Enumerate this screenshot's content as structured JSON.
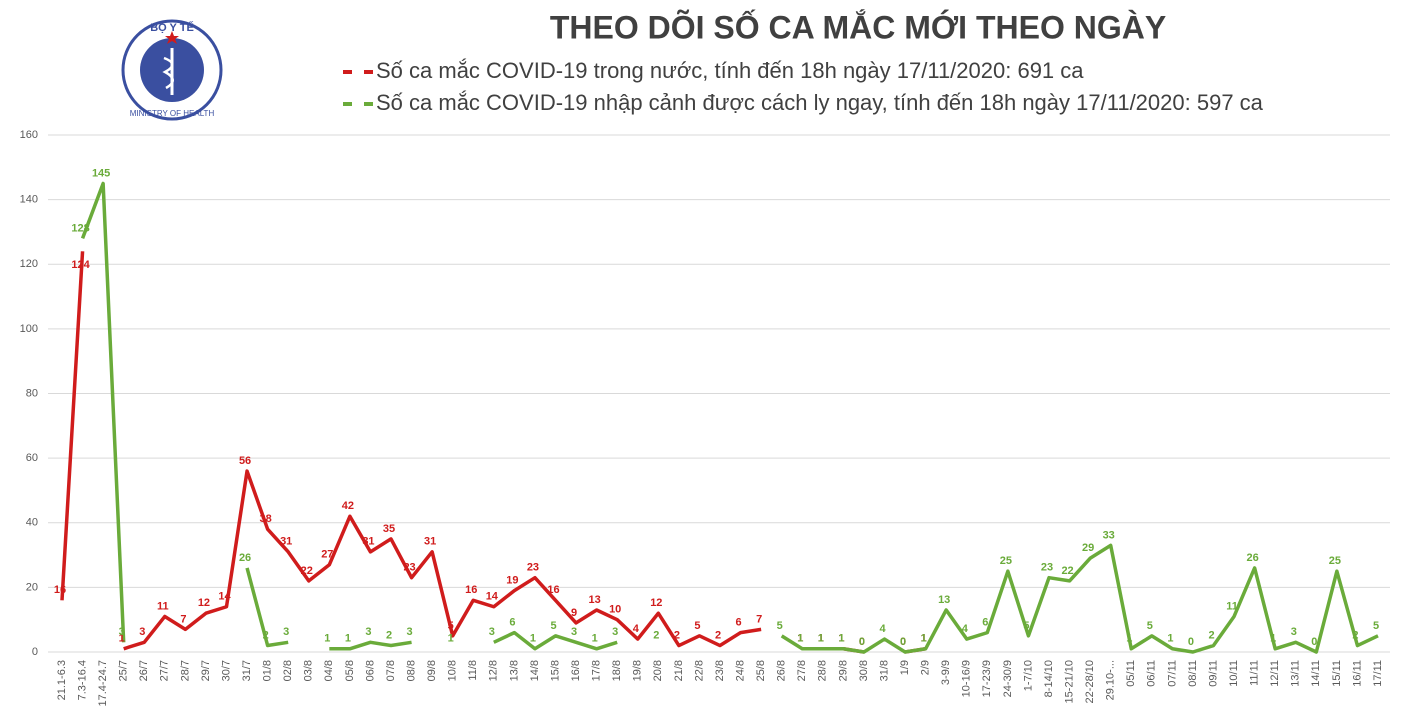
{
  "logo": {
    "top": "BỘ Y TẾ",
    "bottom": "MINISTRY OF HEALTH"
  },
  "chart_data": {
    "type": "line",
    "title": "THEO DÕI SỐ CA MẮC MỚI THEO NGÀY",
    "categories": [
      "21.1-6.3",
      "7.3-16.4",
      "17.4-24.7",
      "25/7",
      "26/7",
      "27/7",
      "28/7",
      "29/7",
      "30/7",
      "31/7",
      "01/8",
      "02/8",
      "03/8",
      "04/8",
      "05/8",
      "06/8",
      "07/8",
      "08/8",
      "09/8",
      "10/8",
      "11/8",
      "12/8",
      "13/8",
      "14/8",
      "15/8",
      "16/8",
      "17/8",
      "18/8",
      "19/8",
      "20/8",
      "21/8",
      "22/8",
      "23/8",
      "24/8",
      "25/8",
      "26/8",
      "27/8",
      "28/8",
      "29/8",
      "30/8",
      "31/8",
      "1/9",
      "2/9",
      "3-9/9",
      "10-16/9",
      "17-23/9",
      "24-30/9",
      "1-7/10",
      "8-14/10",
      "15-21/10",
      "22-28/10",
      "29.10-...",
      "05/11",
      "06/11",
      "07/11",
      "08/11",
      "09/11",
      "10/11",
      "11/11",
      "12/11",
      "13/11",
      "14/11",
      "15/11",
      "16/11",
      "17/11"
    ],
    "series": [
      {
        "name": "Số ca mắc COVID-19 trong nước, tính đến 18h ngày 17/11/2020: 691 ca",
        "color": "#d01c1c",
        "values": [
          16,
          124,
          null,
          1,
          3,
          11,
          7,
          12,
          14,
          56,
          38,
          31,
          22,
          27,
          42,
          31,
          35,
          23,
          31,
          5,
          16,
          14,
          19,
          23,
          16,
          9,
          13,
          10,
          4,
          12,
          2,
          5,
          2,
          6,
          7,
          null,
          1,
          1,
          1,
          0,
          null,
          0,
          1,
          null,
          null,
          null,
          null,
          null,
          null,
          null,
          null,
          null,
          null,
          null,
          null,
          null,
          null,
          null,
          null,
          null,
          null,
          null,
          null,
          null,
          null
        ]
      },
      {
        "name": "Số ca mắc COVID-19 nhập cảnh được cách ly ngay, tính đến 18h ngày 17/11/2020: 597 ca",
        "color": "#6aab3a",
        "values": [
          null,
          128,
          145,
          3,
          null,
          null,
          null,
          null,
          null,
          26,
          2,
          3,
          null,
          1,
          1,
          3,
          2,
          3,
          null,
          1,
          null,
          3,
          6,
          1,
          5,
          3,
          1,
          3,
          null,
          2,
          null,
          null,
          null,
          null,
          null,
          5,
          1,
          1,
          1,
          0,
          4,
          0,
          1,
          13,
          4,
          6,
          25,
          5,
          23,
          22,
          29,
          33,
          1,
          5,
          1,
          0,
          2,
          11,
          26,
          1,
          3,
          0,
          25,
          2,
          5
        ]
      }
    ],
    "ylim": [
      0,
      160
    ],
    "yticks": [
      0,
      20,
      40,
      60,
      80,
      100,
      120,
      140,
      160
    ],
    "grid": true
  }
}
